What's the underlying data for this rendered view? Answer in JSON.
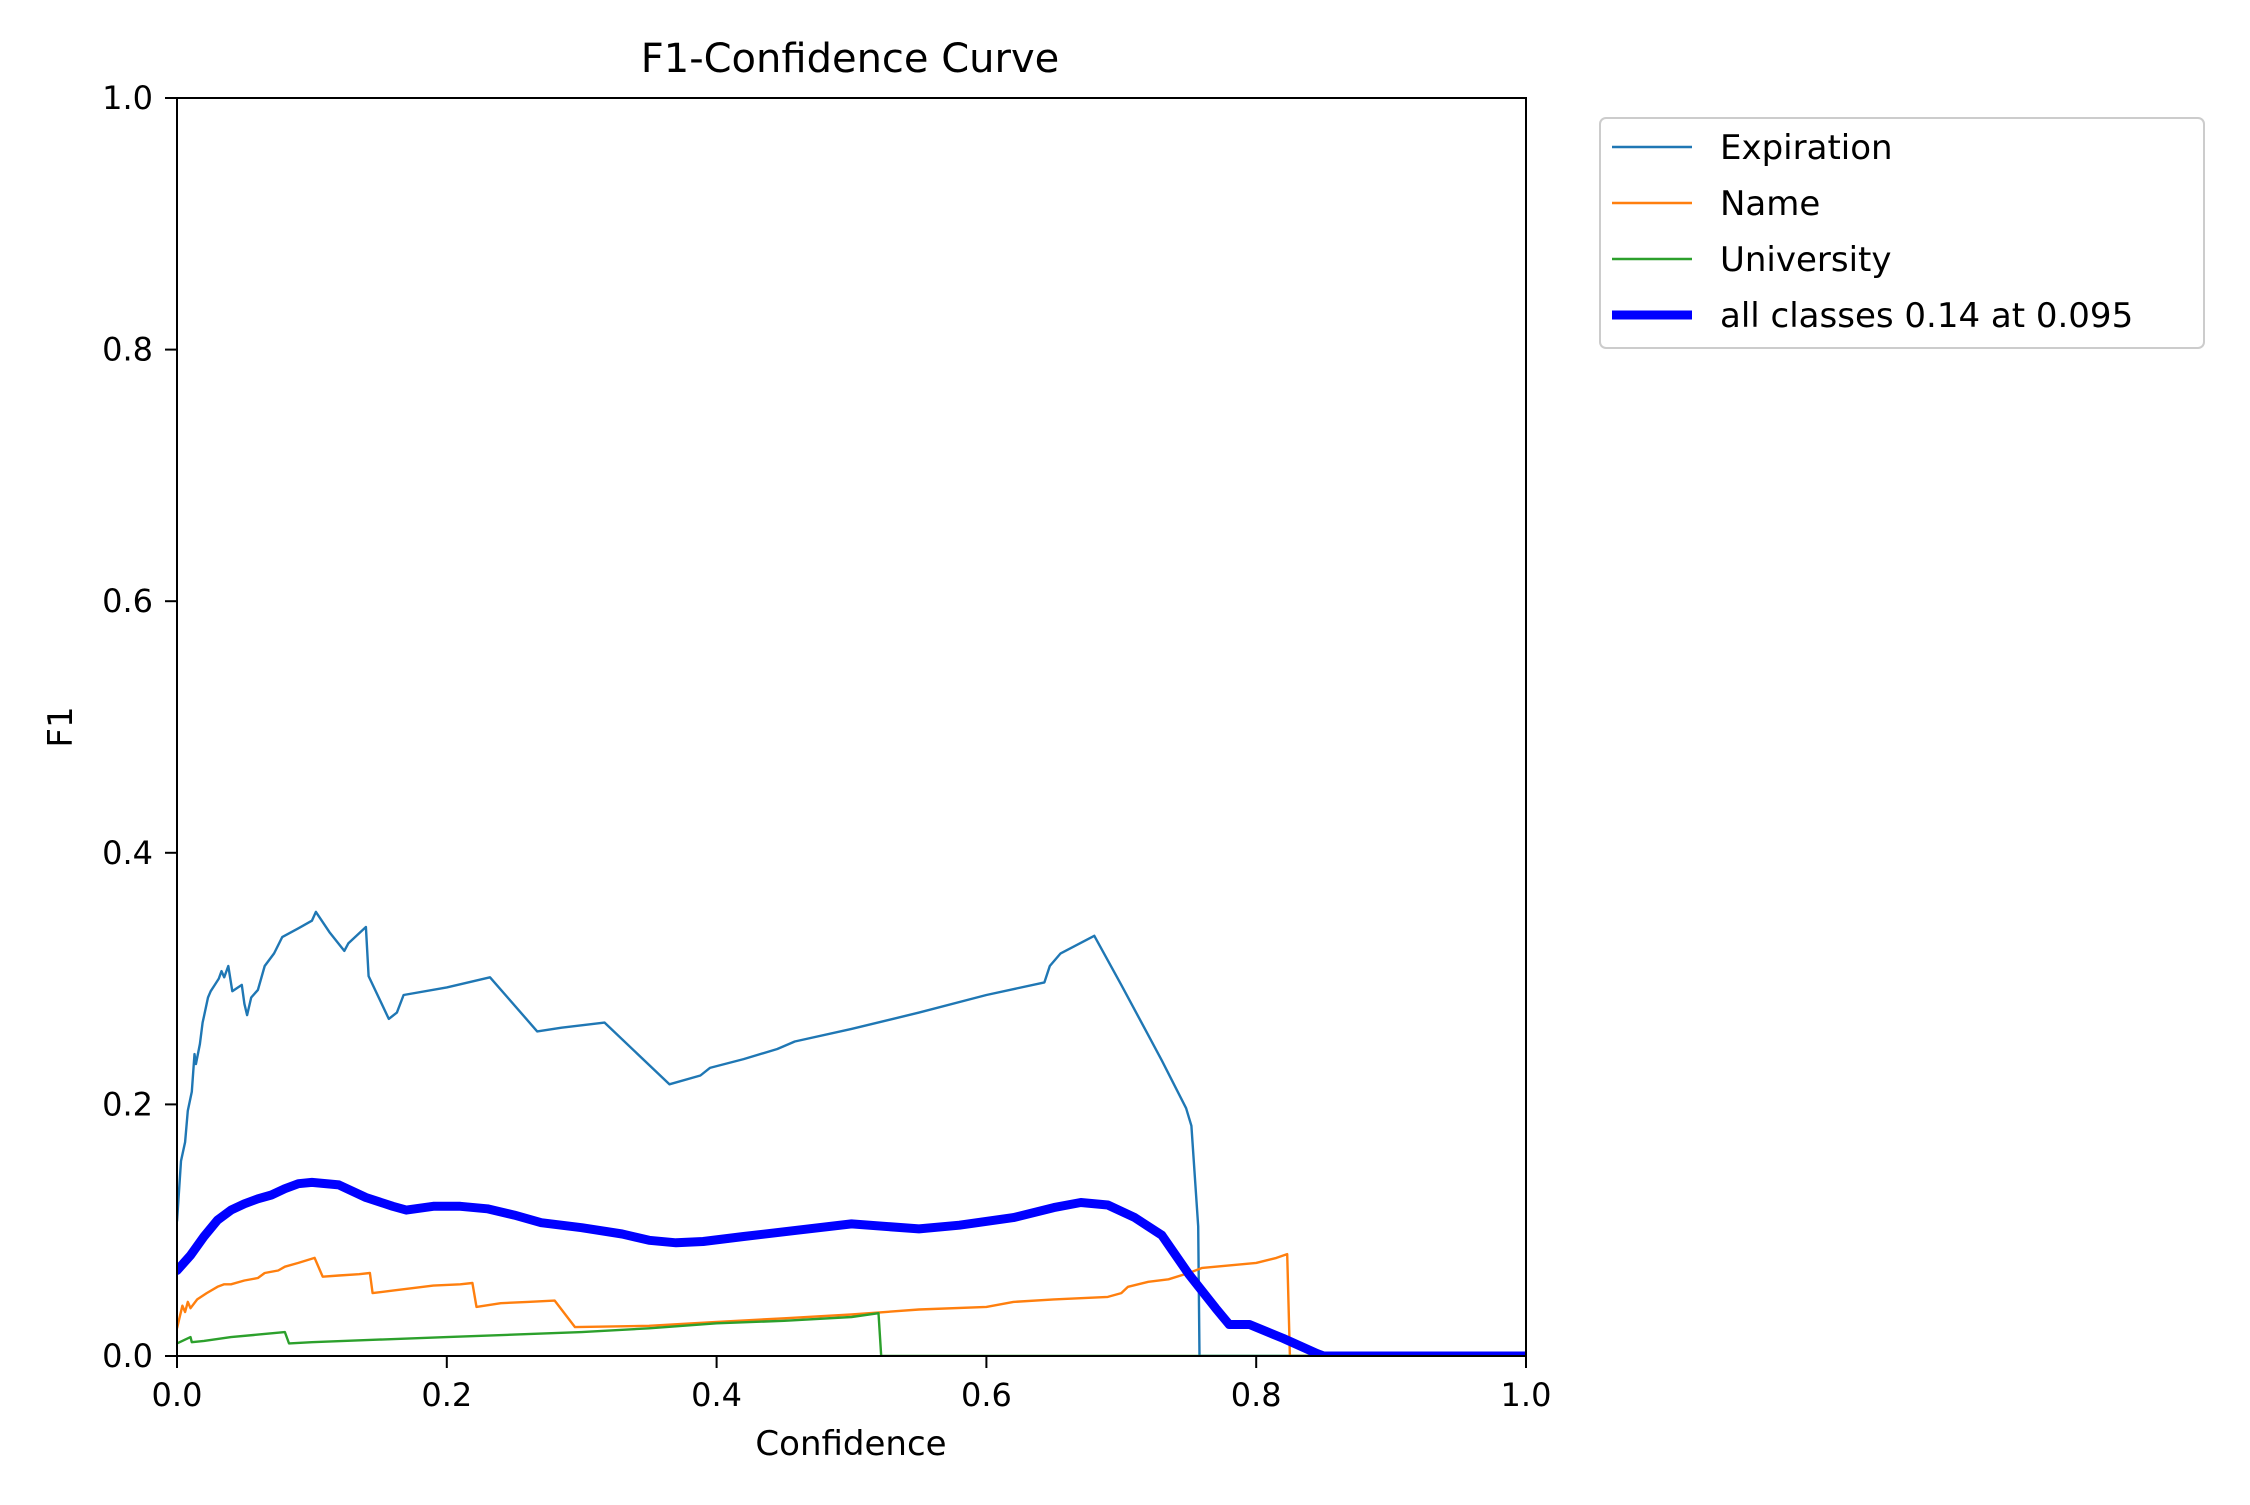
{
  "chart_data": {
    "type": "line",
    "title": "F1-Confidence Curve",
    "xlabel": "Confidence",
    "ylabel": "F1",
    "xlim": [
      0,
      1
    ],
    "ylim": [
      0,
      1
    ],
    "xticks": [
      0.0,
      0.2,
      0.4,
      0.6,
      0.8,
      1.0
    ],
    "yticks": [
      0.0,
      0.2,
      0.4,
      0.6,
      0.8,
      1.0
    ],
    "xtick_labels": [
      "0.0",
      "0.2",
      "0.4",
      "0.6",
      "0.8",
      "1.0"
    ],
    "ytick_labels": [
      "0.0",
      "0.2",
      "0.4",
      "0.6",
      "0.8",
      "1.0"
    ],
    "grid": false,
    "legend_position": "outside-top-right",
    "series": [
      {
        "name": "Expiration",
        "color": "#1f77b4",
        "line_style": "thin",
        "points": [
          [
            0.0,
            0.107
          ],
          [
            0.003,
            0.155
          ],
          [
            0.006,
            0.17
          ],
          [
            0.008,
            0.195
          ],
          [
            0.011,
            0.21
          ],
          [
            0.013,
            0.24
          ],
          [
            0.014,
            0.232
          ],
          [
            0.017,
            0.248
          ],
          [
            0.019,
            0.265
          ],
          [
            0.02,
            0.27
          ],
          [
            0.023,
            0.285
          ],
          [
            0.025,
            0.29
          ],
          [
            0.028,
            0.295
          ],
          [
            0.031,
            0.3
          ],
          [
            0.033,
            0.306
          ],
          [
            0.035,
            0.301
          ],
          [
            0.038,
            0.31
          ],
          [
            0.041,
            0.29
          ],
          [
            0.048,
            0.295
          ],
          [
            0.05,
            0.28
          ],
          [
            0.052,
            0.271
          ],
          [
            0.055,
            0.285
          ],
          [
            0.06,
            0.291
          ],
          [
            0.065,
            0.31
          ],
          [
            0.072,
            0.32
          ],
          [
            0.078,
            0.333
          ],
          [
            0.09,
            0.34
          ],
          [
            0.1,
            0.346
          ],
          [
            0.103,
            0.353
          ],
          [
            0.113,
            0.337
          ],
          [
            0.124,
            0.322
          ],
          [
            0.127,
            0.328
          ],
          [
            0.14,
            0.341
          ],
          [
            0.142,
            0.302
          ],
          [
            0.157,
            0.268
          ],
          [
            0.163,
            0.273
          ],
          [
            0.168,
            0.287
          ],
          [
            0.2,
            0.293
          ],
          [
            0.232,
            0.301
          ],
          [
            0.267,
            0.258
          ],
          [
            0.285,
            0.261
          ],
          [
            0.317,
            0.265
          ],
          [
            0.365,
            0.216
          ],
          [
            0.388,
            0.223
          ],
          [
            0.395,
            0.229
          ],
          [
            0.42,
            0.236
          ],
          [
            0.445,
            0.244
          ],
          [
            0.458,
            0.25
          ],
          [
            0.5,
            0.26
          ],
          [
            0.55,
            0.273
          ],
          [
            0.6,
            0.287
          ],
          [
            0.643,
            0.297
          ],
          [
            0.647,
            0.31
          ],
          [
            0.655,
            0.32
          ],
          [
            0.68,
            0.334
          ],
          [
            0.7,
            0.295
          ],
          [
            0.72,
            0.255
          ],
          [
            0.73,
            0.235
          ],
          [
            0.748,
            0.197
          ],
          [
            0.752,
            0.183
          ],
          [
            0.757,
            0.103
          ],
          [
            0.758,
            0.0
          ],
          [
            1.0,
            0.0
          ]
        ]
      },
      {
        "name": "Name",
        "color": "#ff7f0e",
        "line_style": "thin",
        "points": [
          [
            0.0,
            0.022
          ],
          [
            0.004,
            0.04
          ],
          [
            0.006,
            0.035
          ],
          [
            0.008,
            0.043
          ],
          [
            0.01,
            0.038
          ],
          [
            0.015,
            0.045
          ],
          [
            0.022,
            0.05
          ],
          [
            0.03,
            0.055
          ],
          [
            0.035,
            0.057
          ],
          [
            0.04,
            0.057
          ],
          [
            0.05,
            0.06
          ],
          [
            0.06,
            0.062
          ],
          [
            0.065,
            0.066
          ],
          [
            0.075,
            0.068
          ],
          [
            0.08,
            0.071
          ],
          [
            0.09,
            0.074
          ],
          [
            0.102,
            0.078
          ],
          [
            0.108,
            0.063
          ],
          [
            0.12,
            0.064
          ],
          [
            0.135,
            0.065
          ],
          [
            0.143,
            0.066
          ],
          [
            0.145,
            0.05
          ],
          [
            0.16,
            0.052
          ],
          [
            0.175,
            0.054
          ],
          [
            0.19,
            0.056
          ],
          [
            0.21,
            0.057
          ],
          [
            0.219,
            0.058
          ],
          [
            0.222,
            0.039
          ],
          [
            0.24,
            0.042
          ],
          [
            0.26,
            0.043
          ],
          [
            0.28,
            0.044
          ],
          [
            0.295,
            0.023
          ],
          [
            0.35,
            0.024
          ],
          [
            0.4,
            0.027
          ],
          [
            0.45,
            0.03
          ],
          [
            0.5,
            0.033
          ],
          [
            0.55,
            0.037
          ],
          [
            0.6,
            0.039
          ],
          [
            0.62,
            0.043
          ],
          [
            0.65,
            0.045
          ],
          [
            0.69,
            0.047
          ],
          [
            0.7,
            0.05
          ],
          [
            0.705,
            0.055
          ],
          [
            0.72,
            0.059
          ],
          [
            0.735,
            0.061
          ],
          [
            0.75,
            0.066
          ],
          [
            0.76,
            0.07
          ],
          [
            0.8,
            0.074
          ],
          [
            0.815,
            0.078
          ],
          [
            0.823,
            0.081
          ],
          [
            0.825,
            0.0
          ],
          [
            1.0,
            0.0
          ]
        ]
      },
      {
        "name": "University",
        "color": "#2ca02c",
        "line_style": "thin",
        "points": [
          [
            0.0,
            0.01
          ],
          [
            0.01,
            0.015
          ],
          [
            0.011,
            0.011
          ],
          [
            0.02,
            0.012
          ],
          [
            0.04,
            0.015
          ],
          [
            0.06,
            0.017
          ],
          [
            0.08,
            0.019
          ],
          [
            0.083,
            0.01
          ],
          [
            0.1,
            0.011
          ],
          [
            0.15,
            0.013
          ],
          [
            0.2,
            0.015
          ],
          [
            0.25,
            0.017
          ],
          [
            0.3,
            0.019
          ],
          [
            0.35,
            0.022
          ],
          [
            0.4,
            0.026
          ],
          [
            0.45,
            0.028
          ],
          [
            0.5,
            0.031
          ],
          [
            0.52,
            0.034
          ],
          [
            0.522,
            0.0
          ],
          [
            1.0,
            0.0
          ]
        ]
      },
      {
        "name": "all classes 0.14 at 0.095",
        "color": "#0000ff",
        "line_style": "thick",
        "points": [
          [
            0.0,
            0.068
          ],
          [
            0.01,
            0.08
          ],
          [
            0.02,
            0.095
          ],
          [
            0.03,
            0.108
          ],
          [
            0.04,
            0.116
          ],
          [
            0.05,
            0.121
          ],
          [
            0.06,
            0.125
          ],
          [
            0.07,
            0.128
          ],
          [
            0.08,
            0.133
          ],
          [
            0.09,
            0.137
          ],
          [
            0.1,
            0.138
          ],
          [
            0.12,
            0.136
          ],
          [
            0.14,
            0.126
          ],
          [
            0.16,
            0.119
          ],
          [
            0.17,
            0.116
          ],
          [
            0.19,
            0.119
          ],
          [
            0.21,
            0.119
          ],
          [
            0.23,
            0.117
          ],
          [
            0.25,
            0.112
          ],
          [
            0.27,
            0.106
          ],
          [
            0.3,
            0.102
          ],
          [
            0.33,
            0.097
          ],
          [
            0.35,
            0.092
          ],
          [
            0.37,
            0.09
          ],
          [
            0.39,
            0.091
          ],
          [
            0.42,
            0.095
          ],
          [
            0.46,
            0.1
          ],
          [
            0.5,
            0.105
          ],
          [
            0.55,
            0.101
          ],
          [
            0.58,
            0.104
          ],
          [
            0.62,
            0.11
          ],
          [
            0.65,
            0.118
          ],
          [
            0.67,
            0.122
          ],
          [
            0.69,
            0.12
          ],
          [
            0.71,
            0.11
          ],
          [
            0.73,
            0.096
          ],
          [
            0.75,
            0.065
          ],
          [
            0.77,
            0.038
          ],
          [
            0.78,
            0.025
          ],
          [
            0.795,
            0.025
          ],
          [
            0.82,
            0.014
          ],
          [
            0.845,
            0.002
          ],
          [
            0.85,
            0.0
          ],
          [
            1.0,
            0.0
          ]
        ]
      }
    ]
  }
}
